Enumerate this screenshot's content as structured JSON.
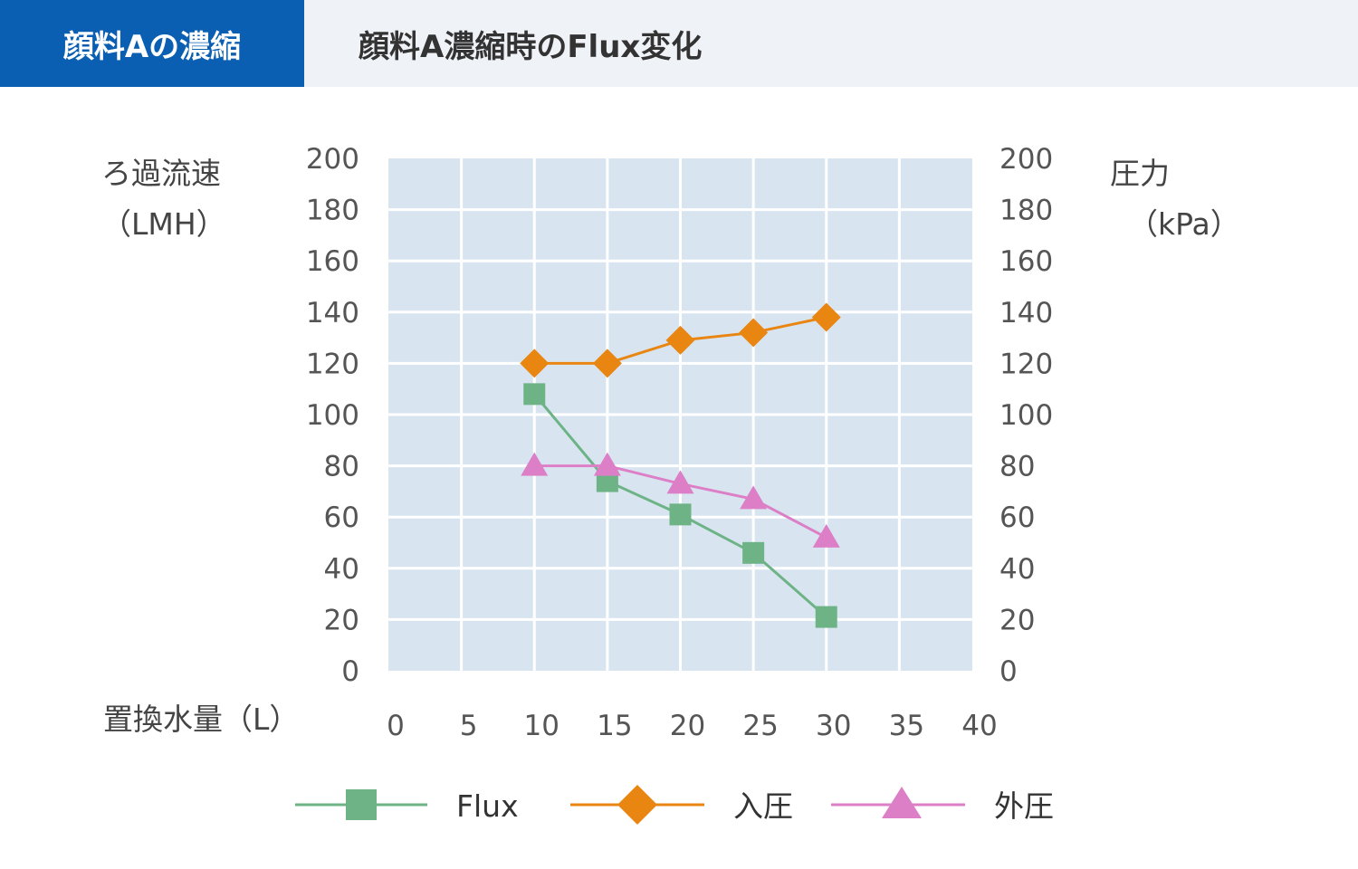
{
  "header": {
    "tab_label": "顔料Aの濃縮",
    "chart_title": "顔料A濃縮時のFlux変化"
  },
  "colors": {
    "header_bg": "#eff3f8",
    "tab_bg": "#0b5fb3",
    "plot_bg": "#d8e5f1",
    "flux": "#6db386",
    "inlet": "#e98612",
    "outlet": "#dd7fc6"
  },
  "chart_data": {
    "type": "line",
    "title": "顔料A濃縮時のFlux変化",
    "ylabel_left_line1": "ろ過流速",
    "ylabel_left_line2": "（LMH）",
    "ylabel_right_line1": "圧力",
    "ylabel_right_line2": "（kPa）",
    "xlabel": "置換水量（L）",
    "xlim": [
      0,
      40
    ],
    "ylim": [
      0,
      200
    ],
    "ylim_right": [
      0,
      200
    ],
    "x_ticks": [
      0,
      5,
      10,
      15,
      20,
      25,
      30,
      35,
      40
    ],
    "y_ticks": [
      0,
      20,
      40,
      60,
      80,
      100,
      120,
      140,
      160,
      180,
      200
    ],
    "grid": true,
    "legend_position": "bottom",
    "series": [
      {
        "name": "Flux",
        "marker": "square",
        "axis": "left",
        "x": [
          10,
          15,
          20,
          25,
          30
        ],
        "y": [
          108,
          74,
          61,
          46,
          21
        ]
      },
      {
        "name": "入圧",
        "marker": "diamond",
        "axis": "right",
        "x": [
          10,
          15,
          20,
          25,
          30
        ],
        "y": [
          120,
          120,
          129,
          132,
          138
        ]
      },
      {
        "name": "外圧",
        "marker": "triangle",
        "axis": "right",
        "x": [
          10,
          15,
          20,
          25,
          30
        ],
        "y": [
          80,
          80,
          73,
          67,
          52
        ]
      }
    ]
  }
}
